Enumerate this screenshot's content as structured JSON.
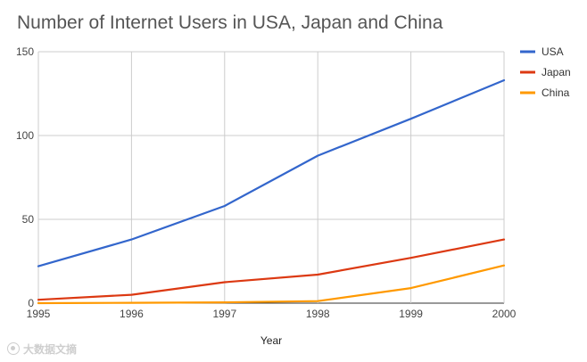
{
  "chart_data": {
    "type": "line",
    "title": "Number of Internet Users in USA, Japan and China",
    "xlabel": "Year",
    "ylabel": "",
    "x": [
      1995,
      1996,
      1997,
      1998,
      1999,
      2000
    ],
    "x_tick_labels": [
      "1995",
      "1996",
      "1997",
      "1998",
      "1999",
      "2000"
    ],
    "y_ticks": [
      0,
      50,
      100,
      150
    ],
    "ylim": [
      0,
      150
    ],
    "grid": true,
    "legend_position": "right",
    "series": [
      {
        "name": "USA",
        "color": "#3366cc",
        "values": [
          22,
          38,
          58,
          88,
          110,
          133
        ]
      },
      {
        "name": "Japan",
        "color": "#dc3912",
        "values": [
          2,
          5,
          12.5,
          17,
          27,
          38
        ]
      },
      {
        "name": "China",
        "color": "#ff9900",
        "values": [
          0,
          0.2,
          0.5,
          1.2,
          9,
          22.5
        ]
      }
    ]
  },
  "watermark": {
    "text": "大数据文摘"
  }
}
